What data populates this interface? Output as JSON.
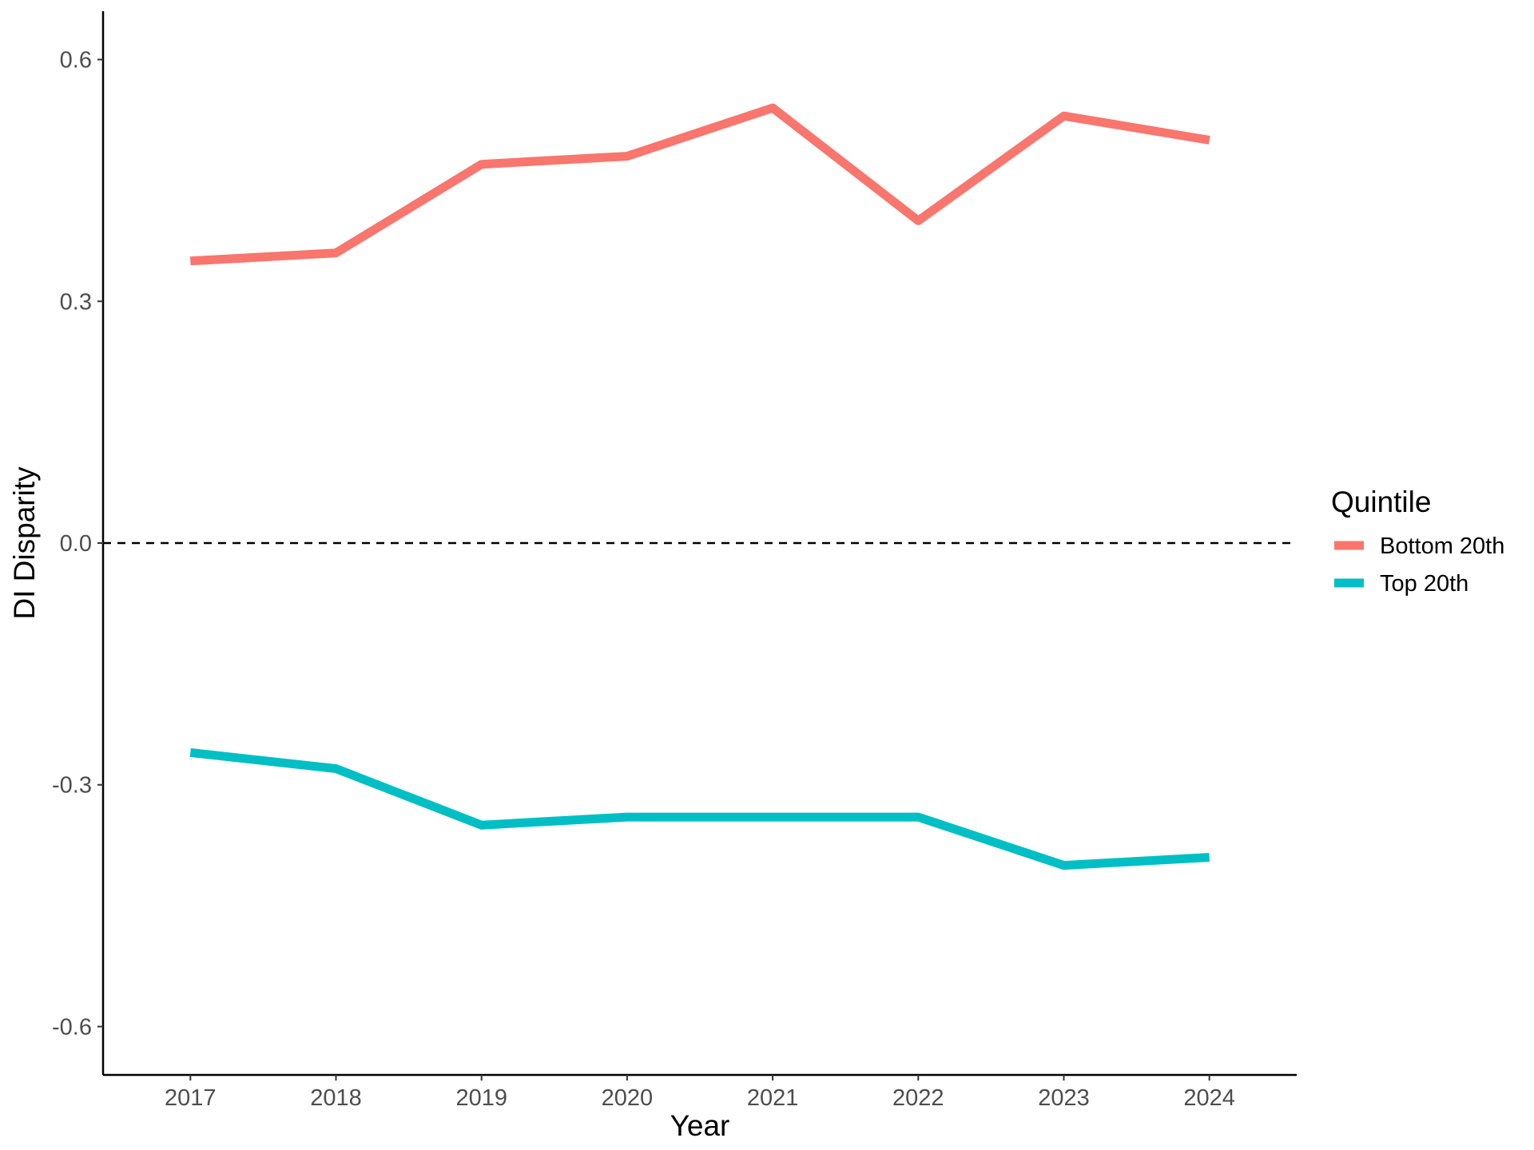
{
  "chart_data": {
    "type": "line",
    "xlabel": "Year",
    "ylabel": "DI Disparity",
    "x": [
      2017,
      2018,
      2019,
      2020,
      2021,
      2022,
      2023,
      2024
    ],
    "x_tick_labels": [
      "2017",
      "2018",
      "2019",
      "2020",
      "2021",
      "2022",
      "2023",
      "2024"
    ],
    "xlim": [
      2016.4,
      2024.6
    ],
    "ylim": [
      -0.66,
      0.66
    ],
    "y_ticks": [
      -0.6,
      -0.3,
      0.0,
      0.3,
      0.6
    ],
    "y_tick_labels": [
      "-0.6",
      "-0.3",
      "0.0",
      "0.3",
      "0.6"
    ],
    "reference_line": {
      "y": 0.0,
      "style": "dashed",
      "color": "#000000"
    },
    "grid": false,
    "legend": {
      "title": "Quintile",
      "position": "right"
    },
    "series": [
      {
        "name": "Bottom 20th",
        "color": "#F8766D",
        "values": [
          0.35,
          0.36,
          0.47,
          0.48,
          0.54,
          0.4,
          0.53,
          0.5
        ]
      },
      {
        "name": "Top 20th",
        "color": "#00BFC4",
        "values": [
          -0.26,
          -0.28,
          -0.35,
          -0.34,
          -0.34,
          -0.34,
          -0.4,
          -0.39
        ]
      }
    ]
  }
}
